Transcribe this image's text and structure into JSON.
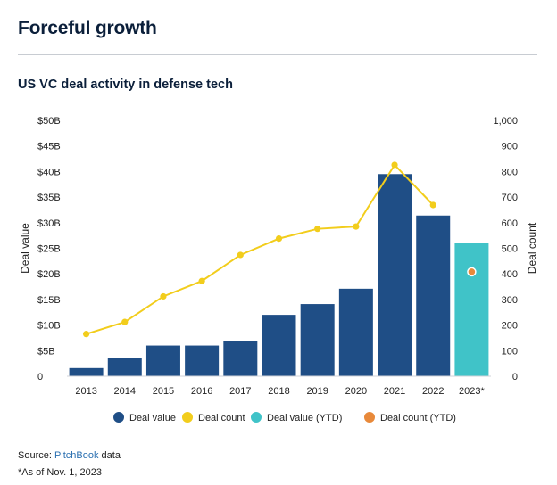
{
  "headline": "Forceful growth",
  "chart_data": {
    "type": "bar",
    "title": "US VC deal activity in defense tech",
    "categories": [
      "2013",
      "2014",
      "2015",
      "2016",
      "2017",
      "2018",
      "2019",
      "2020",
      "2021",
      "2022",
      "2023*"
    ],
    "series": [
      {
        "name": "Deal value",
        "kind": "bar",
        "axis": "left",
        "color": "#1f4e86",
        "values": [
          1.6,
          3.6,
          6.0,
          6.0,
          6.9,
          12.0,
          14.1,
          17.1,
          39.5,
          31.4,
          null
        ]
      },
      {
        "name": "Deal value (YTD)",
        "kind": "bar",
        "axis": "left",
        "color": "#40c3c8",
        "values": [
          null,
          null,
          null,
          null,
          null,
          null,
          null,
          null,
          null,
          null,
          26.1
        ]
      },
      {
        "name": "Deal count",
        "kind": "line",
        "axis": "right",
        "color": "#f2cd1c",
        "values": [
          165,
          212,
          312,
          372,
          474,
          538,
          576,
          585,
          826,
          669,
          null
        ]
      },
      {
        "name": "Deal count (YTD)",
        "kind": "point",
        "axis": "right",
        "color": "#e8893a",
        "values": [
          null,
          null,
          null,
          null,
          null,
          null,
          null,
          null,
          null,
          null,
          408
        ]
      }
    ],
    "ylabel_left": "Deal value",
    "ylabel_right": "Deal count",
    "ylim_left": [
      0,
      50
    ],
    "ylim_right": [
      0,
      1000
    ],
    "yticks_left": [
      "0",
      "$5B",
      "$10B",
      "$15B",
      "$20B",
      "$25B",
      "$30B",
      "$35B",
      "$40B",
      "$45B",
      "$50B"
    ],
    "yticks_right": [
      "0",
      "100",
      "200",
      "300",
      "400",
      "500",
      "600",
      "700",
      "800",
      "900",
      "1,000"
    ],
    "grid": false,
    "legend": [
      "Deal value",
      "Deal count",
      "Deal value (YTD)",
      "Deal count (YTD)"
    ],
    "legend_position": "bottom"
  },
  "source": {
    "prefix": "Source: ",
    "link": "PitchBook",
    "suffix": " data"
  },
  "footnote": "*As of Nov. 1, 2023"
}
